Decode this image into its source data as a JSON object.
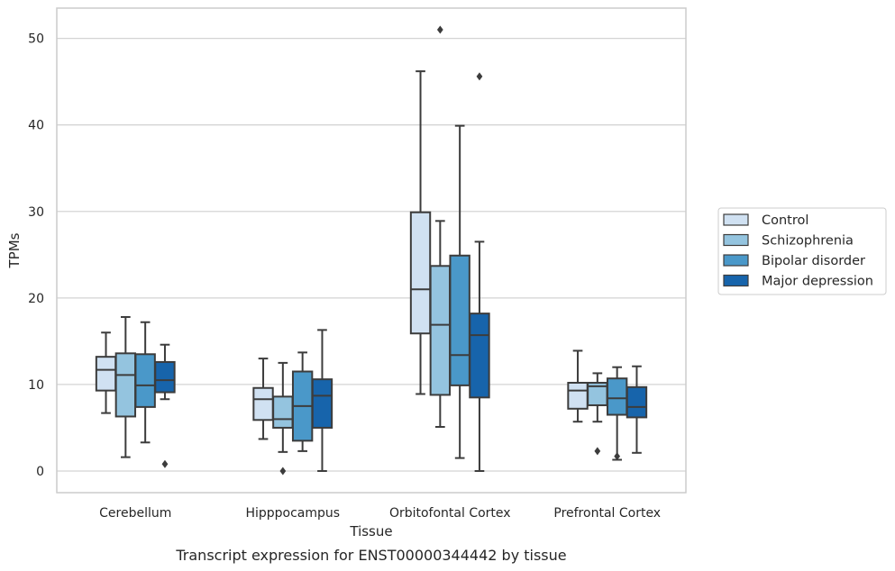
{
  "chart_data": {
    "type": "box",
    "caption": "Transcript expression for ENST00000344442 by tissue",
    "xlabel": "Tissue",
    "ylabel": "TPMs",
    "ylim": [
      -2.5,
      53.5
    ],
    "yticks": [
      0,
      10,
      20,
      30,
      40,
      50
    ],
    "grid": "horizontal",
    "legend_position": "right",
    "categories": [
      "Cerebellum",
      "Hipppocampus",
      "Orbitofontal Cortex",
      "Prefrontal Cortex"
    ],
    "series": [
      {
        "name": "Control",
        "color": "#d0e1f2",
        "boxes": [
          {
            "whisker_low": 6.7,
            "q1": 9.3,
            "median": 11.7,
            "q3": 13.2,
            "whisker_high": 16.0,
            "outliers": []
          },
          {
            "whisker_low": 3.7,
            "q1": 5.9,
            "median": 8.3,
            "q3": 9.6,
            "whisker_high": 13.0,
            "outliers": []
          },
          {
            "whisker_low": 8.9,
            "q1": 15.9,
            "median": 21.0,
            "q3": 29.9,
            "whisker_high": 46.2,
            "outliers": []
          },
          {
            "whisker_low": 5.7,
            "q1": 7.2,
            "median": 9.3,
            "q3": 10.2,
            "whisker_high": 13.9,
            "outliers": []
          }
        ]
      },
      {
        "name": "Schizophrenia",
        "color": "#94c4df",
        "boxes": [
          {
            "whisker_low": 1.6,
            "q1": 6.3,
            "median": 11.1,
            "q3": 13.6,
            "whisker_high": 17.8,
            "outliers": []
          },
          {
            "whisker_low": 2.2,
            "q1": 5.0,
            "median": 6.0,
            "q3": 8.6,
            "whisker_high": 12.5,
            "outliers": [
              0.0
            ]
          },
          {
            "whisker_low": 5.1,
            "q1": 8.8,
            "median": 16.9,
            "q3": 23.7,
            "whisker_high": 28.9,
            "outliers": [
              51.0
            ]
          },
          {
            "whisker_low": 5.7,
            "q1": 7.6,
            "median": 9.8,
            "q3": 10.2,
            "whisker_high": 11.3,
            "outliers": [
              2.3
            ]
          }
        ]
      },
      {
        "name": "Bipolar disorder",
        "color": "#4a98c9",
        "boxes": [
          {
            "whisker_low": 3.3,
            "q1": 7.4,
            "median": 9.9,
            "q3": 13.5,
            "whisker_high": 17.2,
            "outliers": []
          },
          {
            "whisker_low": 2.3,
            "q1": 3.5,
            "median": 7.5,
            "q3": 11.5,
            "whisker_high": 13.7,
            "outliers": []
          },
          {
            "whisker_low": 1.5,
            "q1": 9.9,
            "median": 13.4,
            "q3": 24.9,
            "whisker_high": 39.9,
            "outliers": []
          },
          {
            "whisker_low": 1.3,
            "q1": 6.5,
            "median": 8.4,
            "q3": 10.7,
            "whisker_high": 12.0,
            "outliers": [
              1.7
            ]
          }
        ]
      },
      {
        "name": "Major depression",
        "color": "#1764ab",
        "boxes": [
          {
            "whisker_low": 8.3,
            "q1": 9.1,
            "median": 10.5,
            "q3": 12.6,
            "whisker_high": 14.6,
            "outliers": [
              0.8
            ]
          },
          {
            "whisker_low": 0.0,
            "q1": 5.0,
            "median": 8.7,
            "q3": 10.6,
            "whisker_high": 16.3,
            "outliers": []
          },
          {
            "whisker_low": 0.0,
            "q1": 8.5,
            "median": 15.7,
            "q3": 18.2,
            "whisker_high": 26.5,
            "outliers": [
              45.6
            ]
          },
          {
            "whisker_low": 2.1,
            "q1": 6.2,
            "median": 7.4,
            "q3": 9.7,
            "whisker_high": 12.1,
            "outliers": []
          }
        ]
      }
    ]
  }
}
